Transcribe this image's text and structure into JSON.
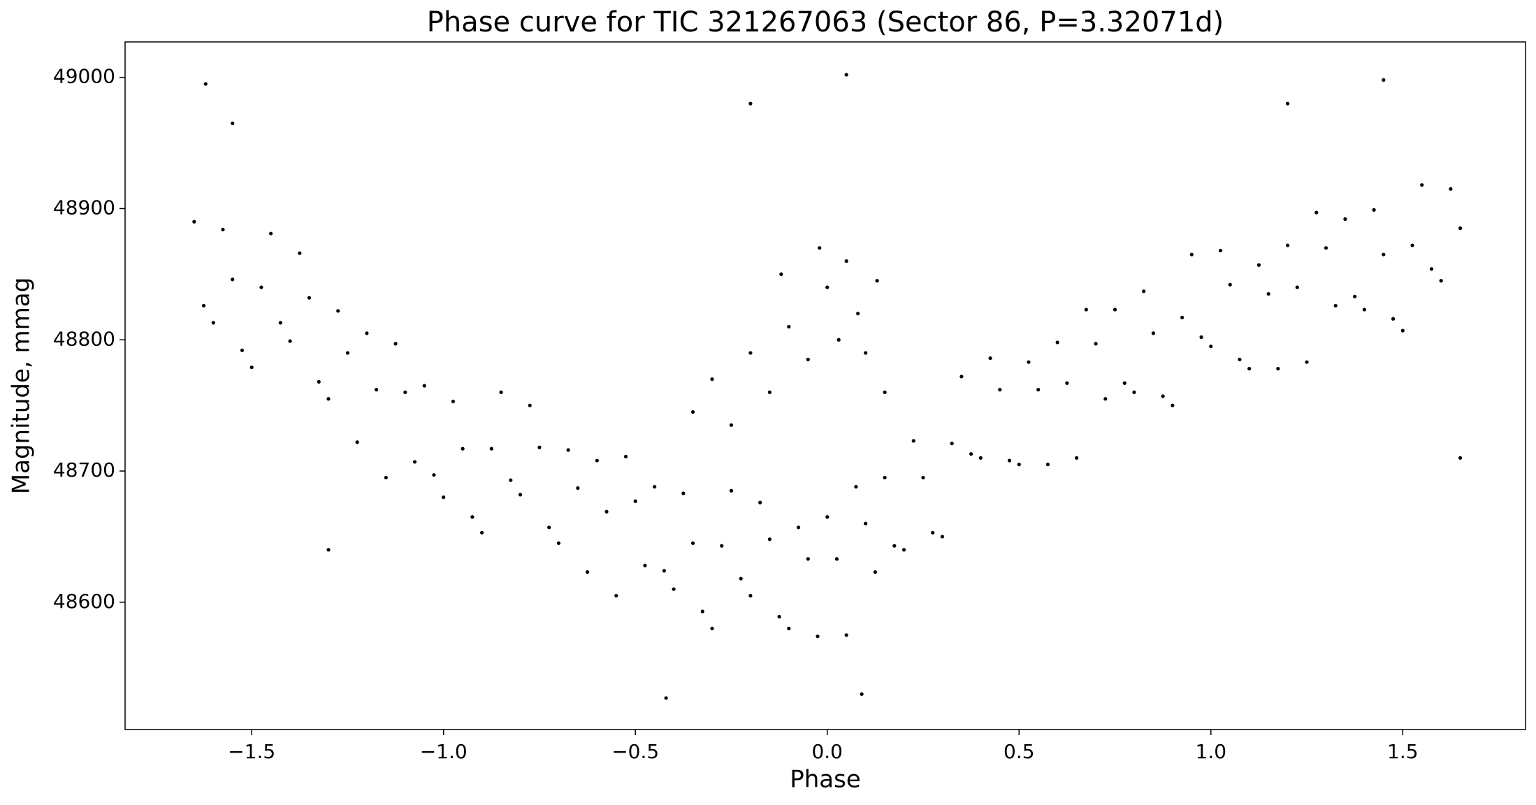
{
  "chart_data": {
    "type": "scatter",
    "title": "Phase curve for TIC 321267063 (Sector 86, P=3.32071d)",
    "x_label": "Phase",
    "y_label": "Magnitude, mmag",
    "color": "#000000",
    "xlim": [
      -1.83,
      1.82
    ],
    "ylim": [
      48503,
      49027
    ],
    "xticks": [
      {
        "value": -1.5,
        "label": "−1.5"
      },
      {
        "value": -1,
        "label": "−1.0"
      },
      {
        "value": -0.5,
        "label": "−0.5"
      },
      {
        "value": 0,
        "label": "0.0"
      },
      0.5,
      {
        "value": 1,
        "label": "1.0"
      },
      1.5
    ],
    "yticks": [
      48600,
      48700,
      48800,
      48900,
      49000
    ],
    "grid": false,
    "x": [
      -1.65,
      -1.6,
      -1.55,
      -1.5,
      -1.45,
      -1.4,
      -1.35,
      -1.3,
      -1.25,
      -1.2,
      -1.15,
      -1.1,
      -1.05,
      -1,
      -0.95,
      -0.9,
      -0.85,
      -0.8,
      -0.75,
      -0.7,
      -0.65,
      -0.6,
      -0.55,
      -0.5,
      -0.45,
      -0.4,
      -0.35,
      -0.3,
      -0.25,
      -0.2,
      -0.15,
      -0.1,
      -0.05,
      0,
      0.05,
      0.1,
      0.15,
      0.2,
      0.25,
      0.3,
      0.35,
      0.4,
      0.45,
      0.5,
      0.55,
      0.6,
      0.65,
      0.7,
      0.75,
      0.8,
      0.85,
      0.9,
      0.95,
      1,
      1.05,
      1.1,
      1.15,
      1.2,
      1.25,
      1.3,
      1.35,
      1.4,
      1.45,
      1.5,
      1.55,
      1.6,
      1.65,
      -1.625,
      -1.575,
      -1.525,
      -1.475,
      -1.425,
      -1.375,
      -1.325,
      -1.275,
      -1.225,
      -1.175,
      -1.125,
      -1.075,
      -1.025,
      -0.975,
      -0.925,
      -0.875,
      -0.825,
      -0.775,
      -0.725,
      -0.675,
      -0.625,
      -0.575,
      -0.525,
      -0.475,
      -0.425,
      -0.375,
      -0.325,
      -0.275,
      -0.225,
      -0.175,
      -0.125,
      -0.075,
      -0.025,
      0.025,
      0.075,
      0.125,
      0.175,
      0.225,
      0.275,
      0.325,
      0.375,
      0.425,
      0.475,
      0.525,
      0.575,
      0.625,
      0.675,
      0.725,
      0.775,
      0.825,
      0.875,
      0.925,
      0.975,
      1.025,
      1.075,
      1.125,
      1.175,
      1.225,
      1.275,
      1.325,
      1.375,
      1.425,
      1.475,
      1.525,
      1.575,
      1.625,
      -0.35,
      -0.3,
      -0.25,
      -0.2,
      -0.15,
      -0.1,
      -0.05,
      0,
      0.03,
      0.05,
      0.08,
      0.1,
      0.13,
      -0.12,
      -0.02,
      0.15,
      -1.62,
      -1.55,
      0.05,
      -0.2,
      1.2,
      1.45,
      -0.42,
      0.09,
      1.65,
      -1.3
    ],
    "values": [
      48890,
      48813,
      48846,
      48779,
      48881,
      48799,
      48832,
      48755,
      48790,
      48805,
      48695,
      48760,
      48765,
      48680,
      48717,
      48653,
      48760,
      48682,
      48718,
      48645,
      48687,
      48708,
      48605,
      48677,
      48688,
      48610,
      48645,
      48580,
      48685,
      48605,
      48648,
      48580,
      48633,
      48665,
      48575,
      48660,
      48695,
      48640,
      48695,
      48650,
      48772,
      48710,
      48762,
      48705,
      48762,
      48798,
      48710,
      48797,
      48823,
      48760,
      48805,
      48750,
      48865,
      48795,
      48842,
      48778,
      48835,
      48872,
      48783,
      48870,
      48892,
      48823,
      48865,
      48807,
      48918,
      48845,
      48885,
      48826,
      48884,
      48792,
      48840,
      48813,
      48866,
      48768,
      48822,
      48722,
      48762,
      48797,
      48707,
      48697,
      48753,
      48665,
      48717,
      48693,
      48750,
      48657,
      48716,
      48623,
      48669,
      48711,
      48628,
      48624,
      48683,
      48593,
      48643,
      48618,
      48676,
      48589,
      48657,
      48574,
      48633,
      48688,
      48623,
      48643,
      48723,
      48653,
      48721,
      48713,
      48786,
      48708,
      48783,
      48705,
      48767,
      48823,
      48755,
      48767,
      48837,
      48757,
      48817,
      48802,
      48868,
      48785,
      48857,
      48778,
      48840,
      48897,
      48826,
      48833,
      48899,
      48816,
      48872,
      48854,
      48915,
      48745,
      48770,
      48735,
      48790,
      48760,
      48810,
      48785,
      48840,
      48800,
      48860,
      48820,
      48790,
      48845,
      48850,
      48870,
      48760,
      48995,
      48965,
      49002,
      48980,
      48980,
      48998,
      48527,
      48530,
      48710,
      48640
    ]
  }
}
